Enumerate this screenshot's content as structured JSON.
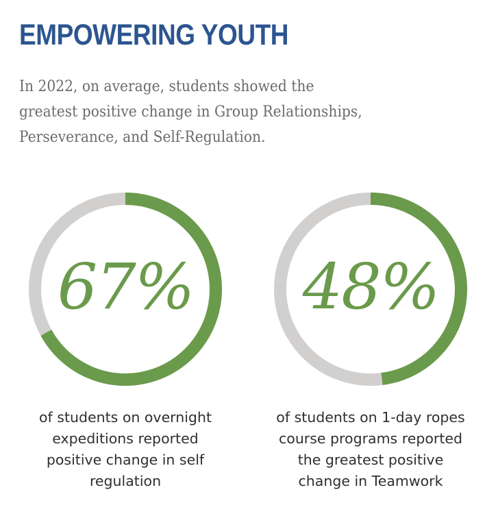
{
  "title": "EMPOWERING YOUTH",
  "intro_lines": [
    "In 2022, on average, students showed the",
    "greatest positive change in Group Relationships,",
    "Perseverance, and Self-Regulation."
  ],
  "colors": {
    "title": "#2c5590",
    "intro_text": "#6b6b6b",
    "ring_fill": "#6a9a4b",
    "ring_track": "#d2d0cf",
    "caption_text": "#2f2f2f"
  },
  "chart_data": [
    {
      "type": "pie",
      "variant": "donut",
      "value": 67,
      "label": "67%",
      "caption_lines": [
        "of students on overnight",
        "expeditions reported",
        "positive change in self",
        "regulation"
      ]
    },
    {
      "type": "pie",
      "variant": "donut",
      "value": 48,
      "label": "48%",
      "caption_lines": [
        "of students on 1-day ropes",
        "course programs reported",
        "the greatest positive",
        "change in Teamwork"
      ]
    }
  ]
}
